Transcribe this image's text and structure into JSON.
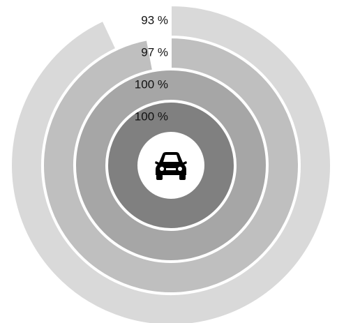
{
  "chart_data": {
    "type": "radial_bar",
    "values": [
      93,
      97,
      100,
      100
    ],
    "value_labels": [
      "93 %",
      "97 %",
      "100 %",
      "100 %"
    ],
    "colors": [
      "#d9d9d9",
      "#bfbfbf",
      "#a6a6a6",
      "#808080"
    ],
    "ylim": [
      0,
      100
    ]
  }
}
